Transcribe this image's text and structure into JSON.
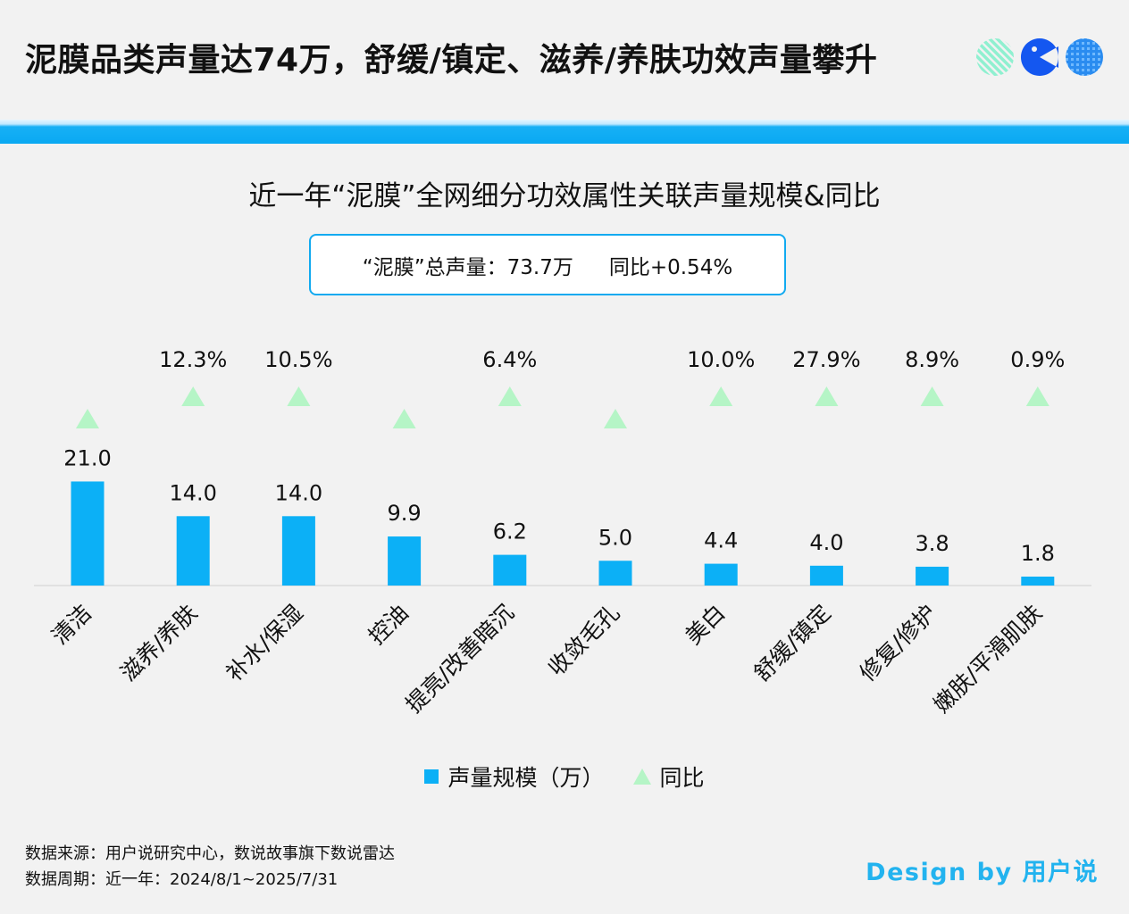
{
  "header": {
    "title": "泥膜品类声量达74万，舒缓/镇定、滋养/养肤功效声量攀升"
  },
  "chart_title": "近一年“泥膜”全网细分功效属性关联声量规模&同比",
  "summary": {
    "total": "“泥膜”总声量：73.7万",
    "yoy": "同比+0.54%"
  },
  "legend": {
    "bars": "声量规模（万）",
    "yoy": "同比"
  },
  "footer": {
    "source": "数据来源：用户说研究中心，数说故事旗下数说雷达",
    "period": "数据周期：近一年：2024/8/1~2025/7/31",
    "credit": "Design by 用户说"
  },
  "colors": {
    "bar": "#0cb0f6",
    "marker": "#b5f5c6",
    "accent": "#12aaf0"
  },
  "chart_data": {
    "type": "bar",
    "categories": [
      "清洁",
      "滋养/养肤",
      "补水/保湿",
      "控油",
      "提亮/改善暗沉",
      "收敛毛孔",
      "美白",
      "舒缓/镇定",
      "修复/修护",
      "嫩肤/平滑肌肤"
    ],
    "series": [
      {
        "name": "声量规模（万）",
        "values": [
          21.0,
          14.0,
          14.0,
          9.9,
          6.2,
          5.0,
          4.4,
          4.0,
          3.8,
          1.8
        ],
        "labels": [
          "21.0",
          "14.0",
          "14.0",
          "9.9",
          "6.2",
          "5.0",
          "4.4",
          "4.0",
          "3.8",
          "1.8"
        ]
      },
      {
        "name": "同比",
        "labels": [
          "",
          "12.3%",
          "10.5%",
          "",
          "6.4%",
          "",
          "10.0%",
          "27.9%",
          "8.9%",
          "0.9%"
        ]
      }
    ]
  }
}
